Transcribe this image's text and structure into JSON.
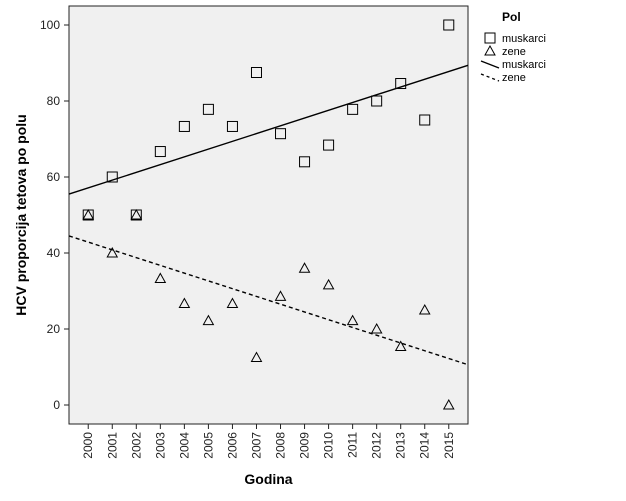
{
  "chart_data": {
    "type": "scatter",
    "xlabel": "Godina",
    "ylabel": "HCV proporcija tetova po polu",
    "x": [
      2000,
      2001,
      2002,
      2003,
      2004,
      2005,
      2006,
      2007,
      2008,
      2009,
      2010,
      2011,
      2012,
      2013,
      2014,
      2015
    ],
    "x_tick_labels": [
      "2000",
      "2001",
      "2002",
      "2003",
      "2004",
      "2005",
      "2006",
      "2007",
      "2008",
      "2009",
      "2010",
      "2011",
      "2012",
      "2013",
      "2014",
      "2015"
    ],
    "yticks": [
      0,
      20,
      40,
      60,
      80,
      100
    ],
    "ylim": [
      -5,
      105
    ],
    "xlim": [
      1999.2,
      2015.8
    ],
    "grid": false,
    "legend_position": "top-right",
    "legend_title": "Pol",
    "series": [
      {
        "name": "muskarci",
        "marker": "square",
        "values": [
          50,
          60,
          50,
          66.7,
          73.3,
          77.8,
          73.3,
          87.5,
          71.4,
          64,
          68.4,
          77.8,
          80,
          84.6,
          75,
          100
        ]
      },
      {
        "name": "zene",
        "marker": "triangle",
        "values": [
          50,
          40,
          50,
          33.3,
          26.7,
          22.2,
          26.7,
          12.5,
          28.6,
          36,
          31.6,
          22.2,
          20,
          15.4,
          25,
          0
        ]
      }
    ],
    "fit_lines": [
      {
        "name": "muskarci",
        "style": "solid",
        "start": [
          1999.2,
          55.5
        ],
        "end": [
          2015.8,
          89.4
        ]
      },
      {
        "name": "zene",
        "style": "dashed",
        "start": [
          1999.2,
          44.5
        ],
        "end": [
          2015.8,
          10.6
        ]
      }
    ],
    "colors": {
      "plot_background": "#f0f0f0",
      "marks": "#000000"
    }
  }
}
